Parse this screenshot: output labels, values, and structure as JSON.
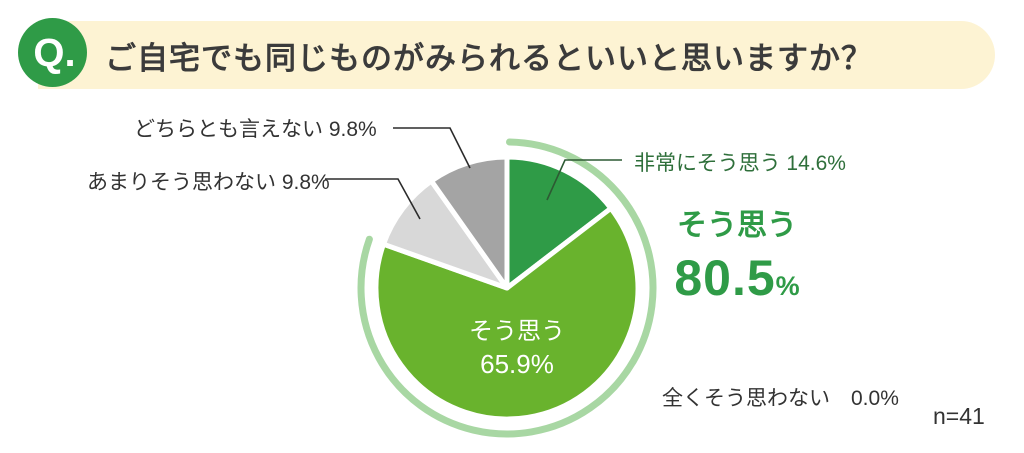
{
  "header": {
    "badge": "Q.",
    "title": "ご自宅でも同じものがみられるといいと思いますか？"
  },
  "chart_data": {
    "type": "pie",
    "title": "ご自宅でも同じものがみられるといいと思いますか？",
    "start_angle_deg": 0,
    "direction": "clockwise",
    "segments": [
      {
        "label": "非常にそう思う",
        "value": 14.6,
        "color": "#2f9b47"
      },
      {
        "label": "そう思う",
        "value": 65.9,
        "color": "#69b32d"
      },
      {
        "label": "あまりそう思わない",
        "value": 9.8,
        "color": "#d8d8d8"
      },
      {
        "label": "どちらとも言えない",
        "value": 9.8,
        "color": "#a4a4a4"
      },
      {
        "label": "全くそう思わない",
        "value": 0.0,
        "color": null
      }
    ],
    "highlight_total": {
      "label": "そう思う",
      "value": 80.5,
      "arc_color": "#a8d7a3"
    },
    "sample_size": "n=41"
  },
  "callouts": {
    "dochira": "どちらとも言えない 9.8%",
    "amari": "あまりそう思わない 9.8%",
    "hijou": "非常にそう思う 14.6%",
    "mattaku": "全くそう思わない　0.0%"
  },
  "pie_inner_label": {
    "line1": "そう思う",
    "line2": "65.9%"
  },
  "highlight": {
    "label": "そう思う",
    "value": "80.5",
    "unit": "%"
  },
  "footnote": {
    "sample": "n=41"
  },
  "colors": {
    "badge_green": "#2f9b47",
    "header_bg": "#fdf3d3",
    "accent_green": "#2f9b47",
    "label_green": "#2e6f3a",
    "arc_green": "#a8d7a3",
    "text_dark": "#333333"
  }
}
